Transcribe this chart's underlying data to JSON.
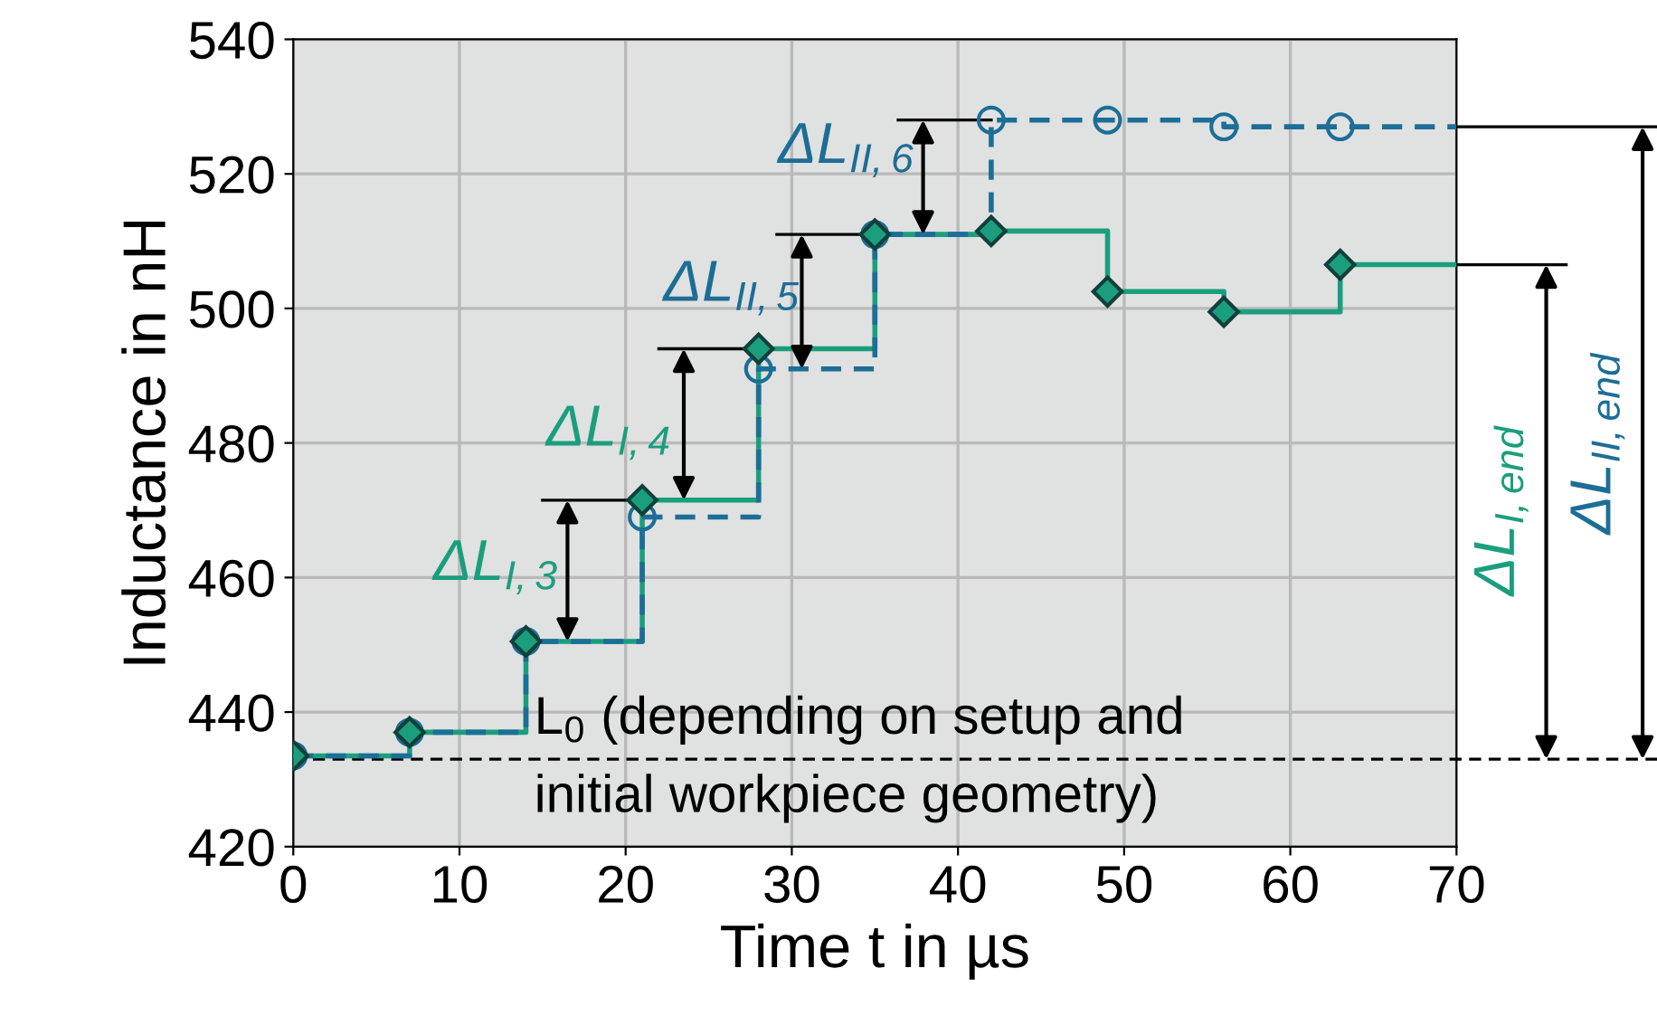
{
  "chart_data": {
    "type": "step",
    "xlabel": "Time t in µs",
    "ylabel": "Inductance in nH",
    "x": [
      0,
      7,
      14,
      21,
      28,
      35,
      42,
      49,
      56,
      63
    ],
    "series": [
      {
        "color": "#1b9e7e",
        "line_style": "solid",
        "x": [
          0,
          7,
          14,
          21,
          28,
          35,
          42,
          49,
          56,
          63,
          70
        ],
        "values": [
          433.5,
          437,
          450.5,
          471.5,
          494,
          511,
          511.5,
          502.5,
          499.5,
          506.5,
          506.5
        ]
      },
      {
        "color": "#1c6e96",
        "line_style": "dashed",
        "x": [
          0,
          7,
          14,
          21,
          28,
          35,
          42,
          49,
          56,
          63,
          70
        ],
        "values": [
          433.5,
          437,
          450.5,
          469,
          491,
          511,
          528,
          528,
          527,
          527,
          527
        ]
      },
      {
        "type": "scatter",
        "color": "#1c6e96",
        "marker": "circle",
        "values": [
          433.5,
          437,
          450.5,
          469,
          491,
          511,
          528,
          528,
          527,
          527
        ]
      },
      {
        "type": "scatter",
        "color": "#1b9e7e",
        "marker": "diamond",
        "values": [
          433.5,
          437,
          450.5,
          471.5,
          494,
          511,
          511.5,
          502.5,
          499.5,
          506.5
        ]
      }
    ],
    "xlim": [
      0,
      70
    ],
    "xticks": [
      0,
      10,
      20,
      30,
      40,
      50,
      60,
      70
    ],
    "ylim": [
      420,
      540
    ],
    "yticks": [
      420,
      440,
      460,
      480,
      500,
      520,
      540
    ],
    "grid": true,
    "legend": false,
    "ref_lines": [
      {
        "axis": "y",
        "value": 433,
        "label": "L$_{0}$ (depending on setup and\ninitial workpiece geometry)",
        "color": "#000000",
        "line_style": "dashed"
      }
    ],
    "annotations": [
      {
        "text": "ΔL$_{I,3}$",
        "x": 21,
        "y": 471.5
      },
      {
        "text": "ΔL$_{I,4}$",
        "x": 28,
        "y": 494
      },
      {
        "text": "ΔL$_{II,5}$",
        "x": 35,
        "y": 511
      },
      {
        "text": "ΔL$_{II,6}$",
        "x": 42,
        "y": 528
      },
      {
        "text": "ΔL$_{I,end}$",
        "x": 70,
        "y": 506.5
      },
      "ΔL$_{II,end}$"
    ]
  }
}
